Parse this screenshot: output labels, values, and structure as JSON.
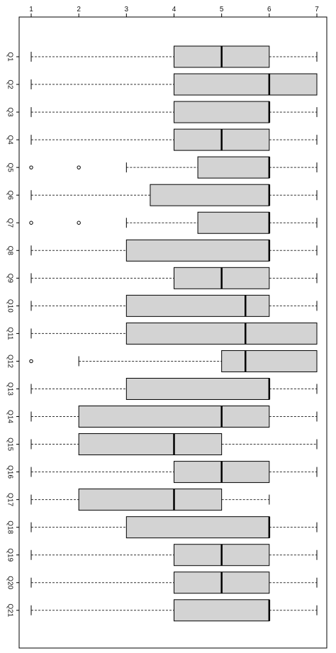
{
  "chart_data": {
    "type": "boxplot",
    "orientation": "horizontal",
    "title": "",
    "xlabel": "",
    "ylabel": "",
    "xlim": [
      1,
      7
    ],
    "x_ticks": [
      1,
      2,
      3,
      4,
      5,
      6,
      7
    ],
    "x_tick_labels": [
      "1",
      "2",
      "3",
      "4",
      "5",
      "6",
      "7"
    ],
    "x_axis_position": "top",
    "grid": false,
    "categories": [
      "Q1",
      "Q2",
      "Q3",
      "Q4",
      "Q5",
      "Q6",
      "Q7",
      "Q8",
      "Q9",
      "Q10",
      "Q11",
      "Q12",
      "Q13",
      "Q14",
      "Q15",
      "Q16",
      "Q17",
      "Q18",
      "Q19",
      "Q20",
      "Q21"
    ],
    "boxes": [
      {
        "label": "Q1",
        "whisker_low": 1,
        "q1": 4,
        "median": 5,
        "q3": 6,
        "whisker_high": 7,
        "outliers": []
      },
      {
        "label": "Q2",
        "whisker_low": 1,
        "q1": 4,
        "median": 6,
        "q3": 7,
        "whisker_high": 7,
        "outliers": []
      },
      {
        "label": "Q3",
        "whisker_low": 1,
        "q1": 4,
        "median": 6,
        "q3": 6,
        "whisker_high": 7,
        "outliers": []
      },
      {
        "label": "Q4",
        "whisker_low": 1,
        "q1": 4,
        "median": 5,
        "q3": 6,
        "whisker_high": 7,
        "outliers": []
      },
      {
        "label": "Q5",
        "whisker_low": 3,
        "q1": 4.5,
        "median": 6,
        "q3": 6,
        "whisker_high": 7,
        "outliers": [
          1,
          2
        ]
      },
      {
        "label": "Q6",
        "whisker_low": 1,
        "q1": 3.5,
        "median": 6,
        "q3": 6,
        "whisker_high": 7,
        "outliers": []
      },
      {
        "label": "Q7",
        "whisker_low": 3,
        "q1": 4.5,
        "median": 6,
        "q3": 6,
        "whisker_high": 7,
        "outliers": [
          1,
          2
        ]
      },
      {
        "label": "Q8",
        "whisker_low": 1,
        "q1": 3,
        "median": 6,
        "q3": 6,
        "whisker_high": 7,
        "outliers": []
      },
      {
        "label": "Q9",
        "whisker_low": 1,
        "q1": 4,
        "median": 5,
        "q3": 6,
        "whisker_high": 7,
        "outliers": []
      },
      {
        "label": "Q10",
        "whisker_low": 1,
        "q1": 3,
        "median": 5.5,
        "q3": 6,
        "whisker_high": 7,
        "outliers": []
      },
      {
        "label": "Q11",
        "whisker_low": 1,
        "q1": 3,
        "median": 5.5,
        "q3": 7,
        "whisker_high": 7,
        "outliers": []
      },
      {
        "label": "Q12",
        "whisker_low": 2,
        "q1": 5,
        "median": 5.5,
        "q3": 7,
        "whisker_high": 7,
        "outliers": [
          1
        ]
      },
      {
        "label": "Q13",
        "whisker_low": 1,
        "q1": 3,
        "median": 6,
        "q3": 6,
        "whisker_high": 7,
        "outliers": []
      },
      {
        "label": "Q14",
        "whisker_low": 1,
        "q1": 2,
        "median": 5,
        "q3": 6,
        "whisker_high": 7,
        "outliers": []
      },
      {
        "label": "Q15",
        "whisker_low": 1,
        "q1": 2,
        "median": 4,
        "q3": 5,
        "whisker_high": 7,
        "outliers": []
      },
      {
        "label": "Q16",
        "whisker_low": 1,
        "q1": 4,
        "median": 5,
        "q3": 6,
        "whisker_high": 7,
        "outliers": []
      },
      {
        "label": "Q17",
        "whisker_low": 1,
        "q1": 2,
        "median": 4,
        "q3": 5,
        "whisker_high": 6,
        "outliers": []
      },
      {
        "label": "Q18",
        "whisker_low": 1,
        "q1": 3,
        "median": 6,
        "q3": 6,
        "whisker_high": 7,
        "outliers": []
      },
      {
        "label": "Q19",
        "whisker_low": 1,
        "q1": 4,
        "median": 5,
        "q3": 6,
        "whisker_high": 7,
        "outliers": []
      },
      {
        "label": "Q20",
        "whisker_low": 1,
        "q1": 4,
        "median": 5,
        "q3": 6,
        "whisker_high": 7,
        "outliers": []
      },
      {
        "label": "Q21",
        "whisker_low": 1,
        "q1": 4,
        "median": 6,
        "q3": 6,
        "whisker_high": 7,
        "outliers": []
      }
    ],
    "colors": {
      "box_fill": "#d3d3d3",
      "stroke": "#000000",
      "whisker": "#333333",
      "background": "#ffffff"
    }
  }
}
